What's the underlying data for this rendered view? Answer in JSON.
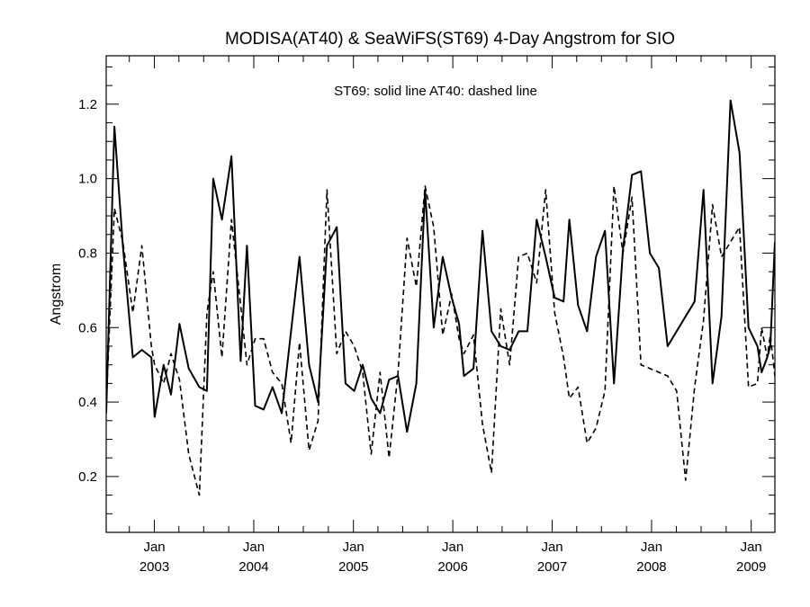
{
  "chart_data": {
    "type": "line",
    "title": "MODISA(AT40) & SeaWiFS(ST69) 4-Day Angstrom for SIO",
    "annotation": "ST69: solid line   AT40: dashed line",
    "ylabel": "Angstrom",
    "xlabel": "",
    "x_range": [
      "2002-07-08",
      "2009-03-29"
    ],
    "ylim": [
      0.05,
      1.33
    ],
    "y_ticks": [
      0.2,
      0.4,
      0.6,
      0.8,
      1.0,
      1.2
    ],
    "y_tick_labels": [
      "0.2",
      "0.4",
      "0.6",
      "0.8",
      "1.0",
      "1.2"
    ],
    "x_ticks": [
      {
        "date": "2003-01-01",
        "month": "Jan",
        "year": "2003"
      },
      {
        "date": "2004-01-01",
        "month": "Jan",
        "year": "2004"
      },
      {
        "date": "2005-01-01",
        "month": "Jan",
        "year": "2005"
      },
      {
        "date": "2006-01-01",
        "month": "Jan",
        "year": "2006"
      },
      {
        "date": "2007-01-01",
        "month": "Jan",
        "year": "2007"
      },
      {
        "date": "2008-01-01",
        "month": "Jan",
        "year": "2008"
      },
      {
        "date": "2009-01-01",
        "month": "Jan",
        "year": "2009"
      }
    ],
    "grid": false,
    "series": [
      {
        "name": "ST69",
        "style": "solid",
        "color": "#000000",
        "points": [
          [
            "2002-07-08",
            0.37
          ],
          [
            "2002-08-07",
            1.14
          ],
          [
            "2002-09-07",
            0.82
          ],
          [
            "2002-10-14",
            0.52
          ],
          [
            "2002-11-16",
            0.54
          ],
          [
            "2002-12-21",
            0.52
          ],
          [
            "2003-01-02",
            0.36
          ],
          [
            "2003-02-04",
            0.5
          ],
          [
            "2003-03-03",
            0.42
          ],
          [
            "2003-04-03",
            0.61
          ],
          [
            "2003-05-07",
            0.49
          ],
          [
            "2003-06-15",
            0.44
          ],
          [
            "2003-07-13",
            0.43
          ],
          [
            "2003-08-05",
            1.0
          ],
          [
            "2003-09-06",
            0.89
          ],
          [
            "2003-10-11",
            1.06
          ],
          [
            "2003-11-14",
            0.51
          ],
          [
            "2003-12-07",
            0.82
          ],
          [
            "2004-01-06",
            0.39
          ],
          [
            "2004-02-06",
            0.38
          ],
          [
            "2004-03-10",
            0.44
          ],
          [
            "2004-04-13",
            0.37
          ],
          [
            "2004-05-17",
            0.59
          ],
          [
            "2004-06-17",
            0.79
          ],
          [
            "2004-07-22",
            0.5
          ],
          [
            "2004-08-24",
            0.4
          ],
          [
            "2004-09-26",
            0.82
          ],
          [
            "2004-11-01",
            0.87
          ],
          [
            "2004-12-03",
            0.45
          ],
          [
            "2005-01-04",
            0.43
          ],
          [
            "2005-02-04",
            0.5
          ],
          [
            "2005-03-07",
            0.41
          ],
          [
            "2005-04-09",
            0.37
          ],
          [
            "2005-05-12",
            0.46
          ],
          [
            "2005-06-14",
            0.47
          ],
          [
            "2005-07-17",
            0.32
          ],
          [
            "2005-08-20",
            0.45
          ],
          [
            "2005-09-21",
            0.97
          ],
          [
            "2005-10-23",
            0.6
          ],
          [
            "2005-11-25",
            0.79
          ],
          [
            "2005-12-28",
            0.68
          ],
          [
            "2006-01-24",
            0.61
          ],
          [
            "2006-02-11",
            0.47
          ],
          [
            "2006-03-18",
            0.49
          ],
          [
            "2006-04-20",
            0.86
          ],
          [
            "2006-05-23",
            0.59
          ],
          [
            "2006-06-26",
            0.55
          ],
          [
            "2006-07-29",
            0.54
          ],
          [
            "2006-08-31",
            0.59
          ],
          [
            "2006-10-02",
            0.59
          ],
          [
            "2006-11-05",
            0.89
          ],
          [
            "2006-12-08",
            0.79
          ],
          [
            "2007-01-10",
            0.68
          ],
          [
            "2007-02-12",
            0.67
          ],
          [
            "2007-03-05",
            0.89
          ],
          [
            "2007-04-06",
            0.66
          ],
          [
            "2007-05-09",
            0.59
          ],
          [
            "2007-06-11",
            0.79
          ],
          [
            "2007-07-14",
            0.86
          ],
          [
            "2007-08-16",
            0.45
          ],
          [
            "2007-09-18",
            0.81
          ],
          [
            "2007-10-21",
            1.01
          ],
          [
            "2007-11-23",
            1.02
          ],
          [
            "2007-12-26",
            0.8
          ],
          [
            "2008-01-28",
            0.76
          ],
          [
            "2008-02-29",
            0.55
          ],
          [
            "2008-04-02",
            0.59
          ],
          [
            "2008-05-05",
            0.63
          ],
          [
            "2008-06-07",
            0.67
          ],
          [
            "2008-07-10",
            0.97
          ],
          [
            "2008-08-12",
            0.45
          ],
          [
            "2008-09-14",
            0.63
          ],
          [
            "2008-10-17",
            1.21
          ],
          [
            "2008-11-19",
            1.07
          ],
          [
            "2008-12-22",
            0.6
          ],
          [
            "2009-01-24",
            0.55
          ],
          [
            "2009-02-08",
            0.48
          ],
          [
            "2009-03-01",
            0.52
          ],
          [
            "2009-03-12",
            0.55
          ],
          [
            "2009-03-29",
            0.83
          ]
        ]
      },
      {
        "name": "AT40",
        "style": "dashed",
        "color": "#000000",
        "points": [
          [
            "2002-07-08",
            0.39
          ],
          [
            "2002-08-07",
            0.92
          ],
          [
            "2002-09-07",
            0.83
          ],
          [
            "2002-10-14",
            0.64
          ],
          [
            "2002-11-16",
            0.82
          ],
          [
            "2002-12-21",
            0.55
          ],
          [
            "2003-01-02",
            0.5
          ],
          [
            "2003-02-04",
            0.45
          ],
          [
            "2003-03-03",
            0.53
          ],
          [
            "2003-04-03",
            0.46
          ],
          [
            "2003-05-07",
            0.26
          ],
          [
            "2003-06-15",
            0.15
          ],
          [
            "2003-07-13",
            0.64
          ],
          [
            "2003-08-05",
            0.75
          ],
          [
            "2003-09-06",
            0.52
          ],
          [
            "2003-10-11",
            0.89
          ],
          [
            "2003-11-14",
            0.66
          ],
          [
            "2003-12-07",
            0.5
          ],
          [
            "2004-01-06",
            0.57
          ],
          [
            "2004-02-06",
            0.57
          ],
          [
            "2004-03-10",
            0.48
          ],
          [
            "2004-04-13",
            0.45
          ],
          [
            "2004-05-17",
            0.29
          ],
          [
            "2004-06-17",
            0.56
          ],
          [
            "2004-07-22",
            0.27
          ],
          [
            "2004-08-24",
            0.35
          ],
          [
            "2004-09-26",
            0.97
          ],
          [
            "2004-11-01",
            0.53
          ],
          [
            "2004-12-03",
            0.59
          ],
          [
            "2005-01-04",
            0.55
          ],
          [
            "2005-02-04",
            0.48
          ],
          [
            "2005-03-07",
            0.26
          ],
          [
            "2005-04-09",
            0.48
          ],
          [
            "2005-05-12",
            0.25
          ],
          [
            "2005-06-14",
            0.48
          ],
          [
            "2005-07-17",
            0.84
          ],
          [
            "2005-08-20",
            0.71
          ],
          [
            "2005-09-21",
            0.98
          ],
          [
            "2005-10-23",
            0.87
          ],
          [
            "2005-11-25",
            0.58
          ],
          [
            "2005-12-28",
            0.69
          ],
          [
            "2006-01-24",
            0.57
          ],
          [
            "2006-02-11",
            0.53
          ],
          [
            "2006-03-18",
            0.58
          ],
          [
            "2006-04-20",
            0.34
          ],
          [
            "2006-05-23",
            0.21
          ],
          [
            "2006-06-26",
            0.65
          ],
          [
            "2006-07-29",
            0.5
          ],
          [
            "2006-08-31",
            0.79
          ],
          [
            "2006-10-02",
            0.8
          ],
          [
            "2006-11-05",
            0.72
          ],
          [
            "2006-12-08",
            0.97
          ],
          [
            "2007-01-10",
            0.64
          ],
          [
            "2007-02-12",
            0.52
          ],
          [
            "2007-03-05",
            0.41
          ],
          [
            "2007-04-06",
            0.44
          ],
          [
            "2007-05-09",
            0.29
          ],
          [
            "2007-06-11",
            0.33
          ],
          [
            "2007-07-14",
            0.43
          ],
          [
            "2007-08-16",
            0.98
          ],
          [
            "2007-09-18",
            0.8
          ],
          [
            "2007-10-21",
            0.95
          ],
          [
            "2007-11-23",
            0.5
          ],
          [
            "2007-12-26",
            0.49
          ],
          [
            "2008-01-28",
            0.48
          ],
          [
            "2008-02-29",
            0.47
          ],
          [
            "2008-04-02",
            0.43
          ],
          [
            "2008-05-05",
            0.19
          ],
          [
            "2008-06-07",
            0.44
          ],
          [
            "2008-07-10",
            0.62
          ],
          [
            "2008-08-12",
            0.93
          ],
          [
            "2008-09-14",
            0.79
          ],
          [
            "2008-10-17",
            0.83
          ],
          [
            "2008-11-19",
            0.87
          ],
          [
            "2008-12-22",
            0.44
          ],
          [
            "2009-01-24",
            0.45
          ],
          [
            "2009-02-08",
            0.6
          ],
          [
            "2009-03-01",
            0.52
          ],
          [
            "2009-03-12",
            0.58
          ],
          [
            "2009-03-29",
            0.47
          ]
        ]
      }
    ]
  }
}
